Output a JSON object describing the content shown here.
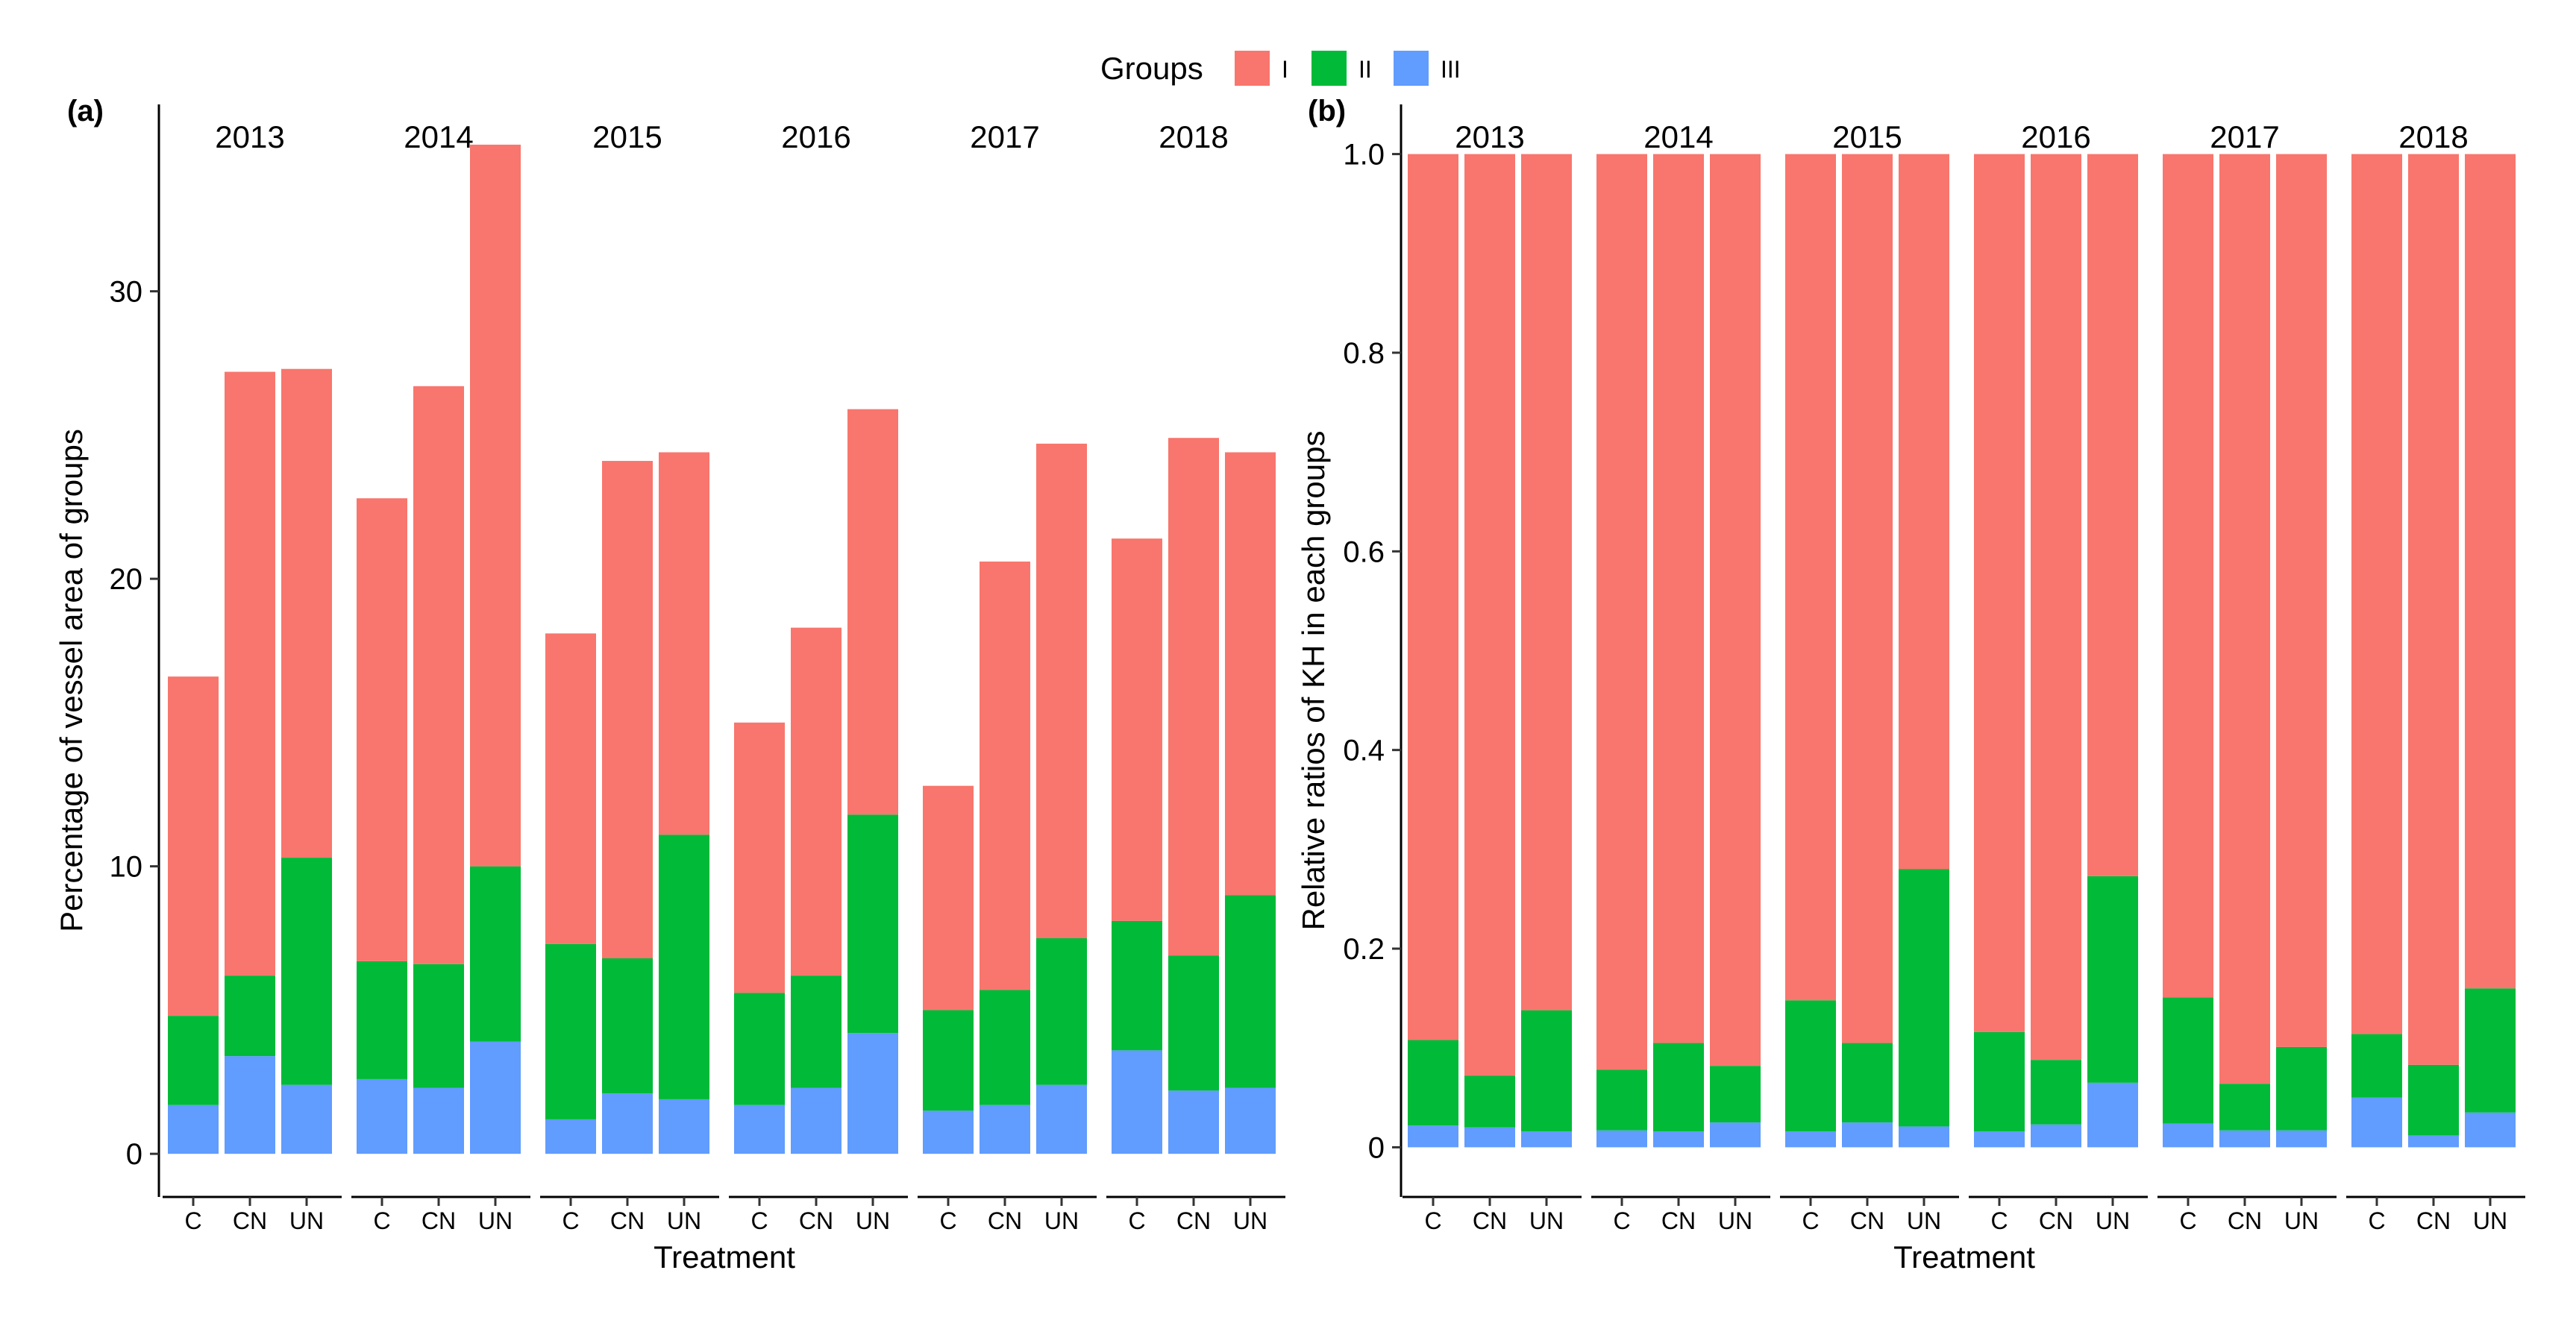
{
  "legend": {
    "title": "Groups",
    "items": [
      {
        "label": "I",
        "color": "#F8766D"
      },
      {
        "label": "II",
        "color": "#00BA38"
      },
      {
        "label": "III",
        "color": "#619CFF"
      }
    ]
  },
  "chart_data": [
    {
      "panel_label": "(a)",
      "type": "bar",
      "stacked": true,
      "xlabel": "Treatment",
      "ylabel": "Percentage of vessel area of groups",
      "ylim": [
        -1.5,
        36.5
      ],
      "yticks": [
        0,
        10,
        20,
        30
      ],
      "ytick_labels": [
        "0",
        "10",
        "20",
        "30"
      ],
      "facets": [
        "2013",
        "2014",
        "2015",
        "2016",
        "2017",
        "2018"
      ],
      "categories": [
        "C",
        "CN",
        "UN"
      ],
      "series": [
        {
          "name": "I",
          "color": "#F8766D",
          "values": [
            [
              11.8,
              21.0,
              17.0
            ],
            [
              16.1,
              20.1,
              25.1
            ],
            [
              10.8,
              17.3,
              13.3
            ],
            [
              9.4,
              12.1,
              14.1
            ],
            [
              7.8,
              14.9,
              17.2
            ],
            [
              13.3,
              18.0,
              15.4
            ]
          ]
        },
        {
          "name": "II",
          "color": "#00BA38",
          "values": [
            [
              3.1,
              2.8,
              7.9
            ],
            [
              4.1,
              4.3,
              6.1
            ],
            [
              6.1,
              4.7,
              9.2
            ],
            [
              3.9,
              3.9,
              7.6
            ],
            [
              3.5,
              4.0,
              5.1
            ],
            [
              4.5,
              4.7,
              6.7
            ]
          ]
        },
        {
          "name": "III",
          "color": "#619CFF",
          "values": [
            [
              1.7,
              3.4,
              2.4
            ],
            [
              2.6,
              2.3,
              3.9
            ],
            [
              1.2,
              2.1,
              1.9
            ],
            [
              1.7,
              2.3,
              4.2
            ],
            [
              1.5,
              1.7,
              2.4
            ],
            [
              3.6,
              2.2,
              2.3
            ]
          ]
        }
      ]
    },
    {
      "panel_label": "(b)",
      "type": "bar",
      "stacked": true,
      "xlabel": "Treatment",
      "ylabel": "Relative ratios of KH in each groups",
      "ylim": [
        -0.05,
        1.05
      ],
      "yticks": [
        0,
        0.2,
        0.4,
        0.6,
        0.8,
        1.0
      ],
      "ytick_labels": [
        "0",
        "0.2",
        "0.4",
        "0.6",
        "0.8",
        "1.0"
      ],
      "facets": [
        "2013",
        "2014",
        "2015",
        "2016",
        "2017",
        "2018"
      ],
      "categories": [
        "C",
        "CN",
        "UN"
      ],
      "series": [
        {
          "name": "I",
          "color": "#F8766D",
          "values": [
            [
              0.892,
              0.928,
              0.862
            ],
            [
              0.922,
              0.895,
              0.918
            ],
            [
              0.852,
              0.895,
              0.72
            ],
            [
              0.884,
              0.912,
              0.727
            ],
            [
              0.849,
              0.936,
              0.899
            ],
            [
              0.886,
              0.917,
              0.84
            ]
          ]
        },
        {
          "name": "II",
          "color": "#00BA38",
          "values": [
            [
              0.086,
              0.052,
              0.122
            ],
            [
              0.061,
              0.089,
              0.057
            ],
            [
              0.132,
              0.08,
              0.259
            ],
            [
              0.1,
              0.065,
              0.208
            ],
            [
              0.127,
              0.047,
              0.084
            ],
            [
              0.064,
              0.071,
              0.125
            ]
          ]
        },
        {
          "name": "III",
          "color": "#619CFF",
          "values": [
            [
              0.022,
              0.02,
              0.016
            ],
            [
              0.017,
              0.016,
              0.025
            ],
            [
              0.016,
              0.025,
              0.021
            ],
            [
              0.016,
              0.023,
              0.065
            ],
            [
              0.024,
              0.017,
              0.017
            ],
            [
              0.05,
              0.012,
              0.035
            ]
          ]
        }
      ]
    }
  ]
}
